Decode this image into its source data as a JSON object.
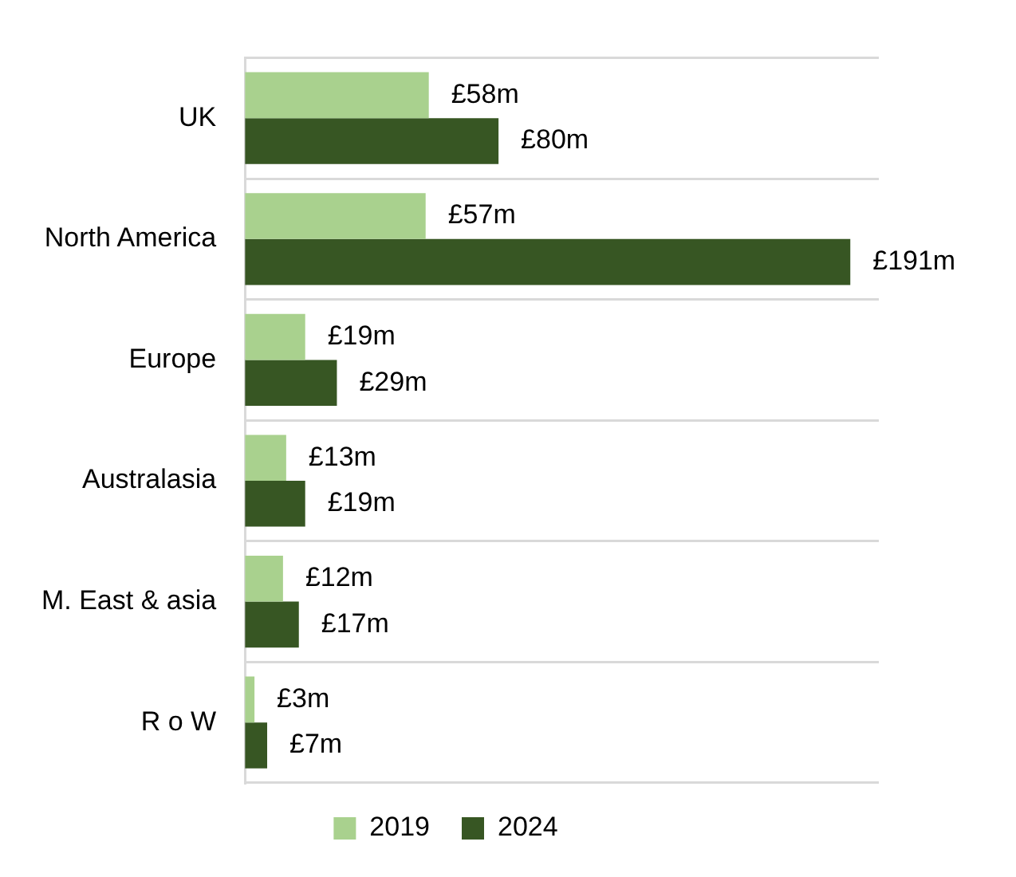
{
  "chart_data": {
    "type": "bar",
    "orientation": "horizontal",
    "categories": [
      "UK",
      "North America",
      "Europe",
      "Australasia",
      "M. East & asia",
      "R o W"
    ],
    "series": [
      {
        "name": "2019",
        "color": "#a9d18e",
        "values": [
          58,
          57,
          19,
          13,
          12,
          3
        ],
        "value_labels": [
          "£58m",
          "£57m",
          "£19m",
          "£13m",
          "£12m",
          "£3m"
        ]
      },
      {
        "name": "2024",
        "color": "#375623",
        "values": [
          80,
          191,
          29,
          19,
          17,
          7
        ],
        "value_labels": [
          "£80m",
          "£191m",
          "£29m",
          "£19m",
          "£17m",
          "£7m"
        ]
      }
    ],
    "grid": "y",
    "legend": "bottom"
  }
}
